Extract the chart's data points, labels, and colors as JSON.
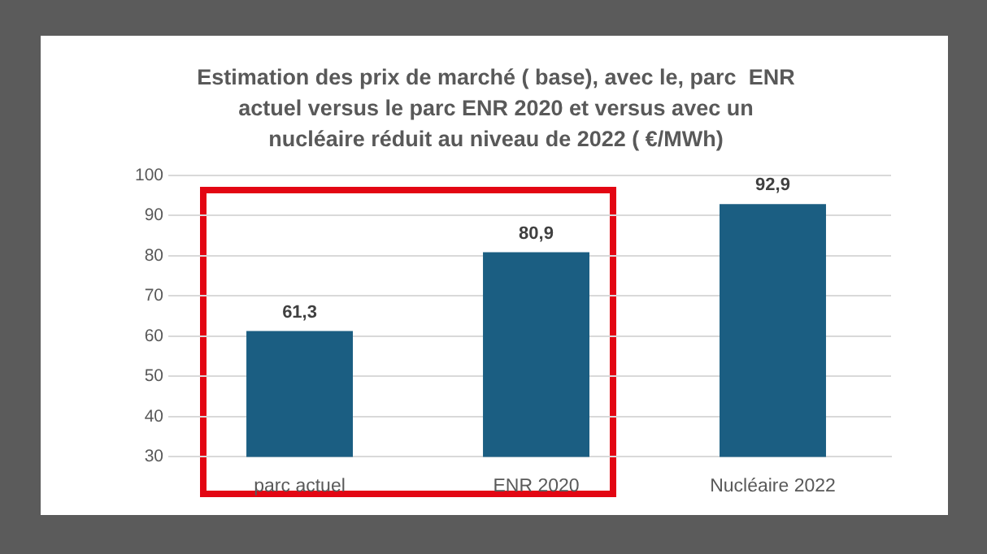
{
  "chart_data": {
    "type": "bar",
    "title": "Estimation des prix de marché ( base), avec le, parc  ENR actuel versus le parc ENR 2020 et versus avec un nucléaire réduit au niveau de 2022 ( €/MWh)",
    "categories": [
      "parc actuel",
      "ENR 2020",
      "Nucléaire 2022"
    ],
    "values": [
      61.3,
      80.9,
      92.9
    ],
    "value_labels": [
      "61,3",
      "80,9",
      "92,9"
    ],
    "color": "#1b5e82",
    "ylim": [
      30,
      100
    ],
    "yticks": [
      30,
      40,
      50,
      60,
      70,
      80,
      90,
      100
    ],
    "grid": "y",
    "legend": false
  }
}
